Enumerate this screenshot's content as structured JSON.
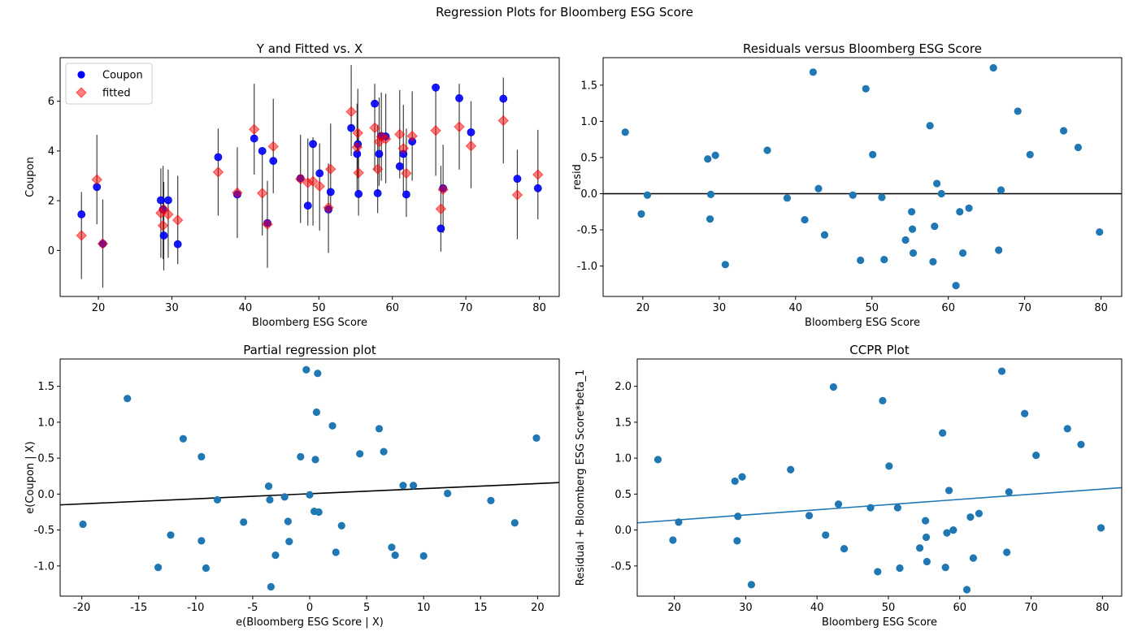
{
  "figure": {
    "suptitle": "Regression Plots for Bloomberg ESG Score"
  },
  "colors": {
    "coupon": "#0000ff",
    "fitted": "#ff0000",
    "scatter": "#1f77b4",
    "line": "#000000",
    "ccpr_line": "#1f77b4",
    "errbar": "#000000"
  },
  "chart_data": [
    {
      "type": "scatter",
      "title": "Y and Fitted vs. X",
      "xlabel": "Bloomberg ESG Score",
      "ylabel": "Coupon",
      "xlim": [
        14.8,
        82.7
      ],
      "ylim": [
        -1.85,
        7.75
      ],
      "xticks": [
        20,
        30,
        40,
        50,
        60,
        70,
        80
      ],
      "yticks": [
        0,
        2,
        4,
        6
      ],
      "legend": {
        "position": "upper-left",
        "entries": [
          "Coupon",
          "fitted"
        ]
      },
      "series": [
        {
          "name": "Coupon",
          "marker": "circle",
          "x": [
            17.7,
            19.8,
            20.6,
            28.5,
            28.8,
            28.9,
            29.5,
            30.8,
            36.3,
            38.9,
            41.2,
            42.3,
            43.0,
            43.8,
            47.5,
            48.5,
            49.2,
            50.1,
            51.3,
            51.6,
            54.4,
            55.2,
            55.3,
            55.4,
            57.6,
            58.0,
            58.2,
            58.5,
            59.1,
            61.0,
            61.5,
            61.9,
            62.7,
            65.9,
            66.6,
            66.9,
            69.1,
            70.7,
            75.1,
            77.0,
            79.8
          ],
          "y": [
            1.45,
            2.55,
            0.27,
            2.02,
            1.65,
            0.6,
            2.02,
            0.25,
            3.75,
            2.25,
            4.5,
            4.0,
            1.1,
            3.6,
            2.9,
            1.8,
            4.28,
            3.1,
            1.65,
            2.35,
            4.92,
            3.88,
            4.27,
            2.27,
            5.9,
            2.3,
            3.88,
            4.6,
            4.58,
            3.38,
            3.88,
            2.25,
            4.38,
            6.55,
            0.88,
            2.5,
            6.12,
            4.75,
            6.1,
            2.88,
            2.5
          ]
        },
        {
          "name": "fitted",
          "marker": "diamond",
          "x": [
            17.7,
            19.8,
            20.6,
            28.5,
            28.8,
            28.9,
            29.5,
            30.8,
            36.3,
            38.9,
            41.2,
            42.3,
            43.0,
            43.8,
            47.5,
            48.5,
            49.2,
            50.1,
            51.3,
            51.6,
            54.4,
            55.2,
            55.3,
            55.4,
            57.6,
            58.0,
            58.2,
            58.5,
            59.1,
            61.0,
            61.5,
            61.9,
            62.7,
            65.9,
            66.6,
            66.9,
            69.1,
            70.7,
            75.1,
            77.0,
            79.8
          ],
          "y": [
            0.6,
            2.85,
            0.27,
            1.5,
            1.0,
            1.65,
            1.45,
            1.22,
            3.15,
            2.32,
            4.87,
            2.3,
            1.05,
            4.18,
            2.87,
            2.72,
            2.78,
            2.58,
            1.72,
            3.27,
            5.58,
            4.15,
            4.72,
            3.12,
            4.93,
            3.27,
            4.37,
            4.57,
            4.48,
            4.67,
            4.1,
            3.1,
            4.6,
            4.82,
            1.67,
            2.45,
            4.97,
            4.2,
            5.22,
            2.23,
            3.05
          ]
        }
      ],
      "error_bars": {
        "x": [
          17.7,
          19.8,
          20.6,
          28.5,
          28.8,
          28.9,
          29.5,
          30.8,
          36.3,
          38.9,
          41.2,
          42.3,
          43.0,
          43.8,
          47.5,
          48.5,
          49.2,
          50.1,
          51.3,
          51.6,
          54.4,
          55.2,
          55.3,
          55.4,
          57.6,
          58.0,
          58.2,
          58.5,
          59.1,
          61.0,
          61.5,
          61.9,
          62.7,
          65.9,
          66.6,
          66.9,
          69.1,
          70.7,
          75.1,
          77.0,
          79.8
        ],
        "low": [
          -1.15,
          1.05,
          -1.5,
          -0.3,
          -0.35,
          -0.8,
          -0.3,
          -0.55,
          1.4,
          0.5,
          3.05,
          0.6,
          -0.7,
          2.3,
          1.1,
          1.0,
          1.0,
          0.8,
          -0.1,
          1.5,
          3.8,
          2.4,
          2.9,
          1.4,
          3.2,
          1.5,
          2.6,
          2.8,
          2.7,
          2.9,
          2.35,
          1.35,
          2.8,
          3.0,
          -0.05,
          0.7,
          3.25,
          2.5,
          3.5,
          0.45,
          1.25
        ],
        "high": [
          2.35,
          4.65,
          2.05,
          3.3,
          3.4,
          2.75,
          3.25,
          3.0,
          4.9,
          4.15,
          6.7,
          4.05,
          2.8,
          6.1,
          4.65,
          4.5,
          4.55,
          4.3,
          3.5,
          5.1,
          7.45,
          5.9,
          6.5,
          4.85,
          6.7,
          5.05,
          6.15,
          6.35,
          6.3,
          6.45,
          5.85,
          4.9,
          6.4,
          6.6,
          3.4,
          4.25,
          6.7,
          6.0,
          6.95,
          4.05,
          4.85
        ]
      }
    },
    {
      "type": "scatter",
      "title": "Residuals versus Bloomberg ESG Score",
      "xlabel": "Bloomberg ESG Score",
      "ylabel": "resid",
      "xlim": [
        14.8,
        82.7
      ],
      "ylim": [
        -1.42,
        1.88
      ],
      "xticks": [
        20,
        30,
        40,
        50,
        60,
        70,
        80
      ],
      "yticks": [
        -1.0,
        -0.5,
        0.0,
        0.5,
        1.0,
        1.5
      ],
      "hline": 0,
      "points": {
        "x": [
          17.7,
          19.8,
          20.6,
          28.5,
          28.8,
          28.9,
          29.5,
          30.8,
          36.3,
          38.9,
          41.2,
          42.3,
          43.0,
          43.8,
          47.5,
          48.5,
          49.2,
          50.1,
          51.3,
          51.6,
          54.4,
          55.2,
          55.3,
          55.4,
          57.6,
          58.0,
          58.2,
          58.5,
          59.1,
          61.0,
          61.5,
          61.9,
          62.7,
          65.9,
          66.6,
          66.9,
          69.1,
          70.7,
          75.1,
          77.0,
          79.8
        ],
        "y": [
          0.85,
          -0.28,
          -0.02,
          0.48,
          -0.35,
          -0.01,
          0.53,
          -0.98,
          0.6,
          -0.06,
          -0.36,
          1.68,
          0.07,
          -0.57,
          -0.02,
          -0.92,
          1.45,
          0.54,
          -0.05,
          -0.91,
          -0.64,
          -0.25,
          -0.49,
          -0.82,
          0.94,
          -0.94,
          -0.45,
          0.14,
          0.0,
          -1.27,
          -0.25,
          -0.82,
          -0.2,
          1.74,
          -0.78,
          0.05,
          1.14,
          0.54,
          0.87,
          0.64,
          -0.53
        ]
      }
    },
    {
      "type": "scatter",
      "title": "Partial regression plot",
      "xlabel": "e(Bloomberg ESG Score | X)",
      "ylabel": "e(Coupon | X)",
      "xlim": [
        -21.9,
        21.9
      ],
      "ylim": [
        -1.42,
        1.88
      ],
      "xticks": [
        -20,
        -15,
        -10,
        -5,
        0,
        5,
        10,
        15,
        20
      ],
      "yticks": [
        -1.0,
        -0.5,
        0.0,
        0.5,
        1.0,
        1.5
      ],
      "fit_line": {
        "x": [
          -21.9,
          21.9
        ],
        "y": [
          -0.15,
          0.16
        ]
      },
      "points": {
        "x": [
          -19.9,
          -16.0,
          -13.3,
          -12.2,
          -11.1,
          -9.5,
          -9.5,
          -9.1,
          -8.1,
          -5.8,
          -3.6,
          -3.5,
          -3.4,
          -3.0,
          -2.2,
          -1.9,
          -1.8,
          -0.8,
          -0.3,
          0.0,
          0.4,
          0.5,
          0.6,
          0.8,
          0.7,
          2.0,
          2.3,
          2.8,
          4.4,
          6.1,
          6.5,
          7.2,
          7.5,
          8.2,
          9.1,
          10.0,
          12.1,
          15.9,
          18.0,
          19.9
        ],
        "y": [
          -0.42,
          1.33,
          -1.02,
          -0.57,
          0.77,
          0.52,
          -0.65,
          -1.03,
          -0.08,
          -0.39,
          0.11,
          -0.08,
          -1.29,
          -0.85,
          -0.04,
          -0.38,
          -0.66,
          0.52,
          1.73,
          -0.01,
          -0.24,
          0.48,
          1.14,
          -0.25,
          1.68,
          0.95,
          -0.81,
          -0.44,
          0.56,
          0.91,
          0.59,
          -0.74,
          -0.85,
          0.12,
          0.12,
          -0.86,
          0.01,
          -0.09,
          -0.4,
          0.78
        ]
      }
    },
    {
      "type": "scatter",
      "title": "CCPR Plot",
      "xlabel": "Bloomberg ESG Score",
      "ylabel": "Residual + Bloomberg ESG Score*beta_1",
      "xlim": [
        14.8,
        82.7
      ],
      "ylim": [
        -0.92,
        2.38
      ],
      "xticks": [
        20,
        30,
        40,
        50,
        60,
        70,
        80
      ],
      "yticks": [
        -0.5,
        0.0,
        0.5,
        1.0,
        1.5,
        2.0
      ],
      "fit_line": {
        "x": [
          14.8,
          82.7
        ],
        "y": [
          0.1,
          0.59
        ]
      },
      "points": {
        "x": [
          17.7,
          19.8,
          20.6,
          28.5,
          28.8,
          28.9,
          29.5,
          30.8,
          36.3,
          38.9,
          41.2,
          42.3,
          43.0,
          43.8,
          47.5,
          48.5,
          49.2,
          50.1,
          51.3,
          51.6,
          54.4,
          55.2,
          55.3,
          55.4,
          57.6,
          58.0,
          58.2,
          58.5,
          59.1,
          61.0,
          61.5,
          61.9,
          62.7,
          65.9,
          66.6,
          66.9,
          69.1,
          70.7,
          75.1,
          77.0,
          79.8
        ],
        "y": [
          0.98,
          -0.14,
          0.11,
          0.68,
          -0.15,
          0.19,
          0.74,
          -0.76,
          0.84,
          0.2,
          -0.07,
          1.99,
          0.36,
          -0.26,
          0.31,
          -0.58,
          1.8,
          0.89,
          0.31,
          -0.53,
          -0.25,
          0.13,
          -0.1,
          -0.44,
          1.35,
          -0.52,
          -0.04,
          0.55,
          0.0,
          -0.83,
          0.18,
          -0.39,
          0.23,
          2.21,
          -0.31,
          0.53,
          1.62,
          1.04,
          1.41,
          1.19,
          0.03
        ]
      }
    }
  ]
}
